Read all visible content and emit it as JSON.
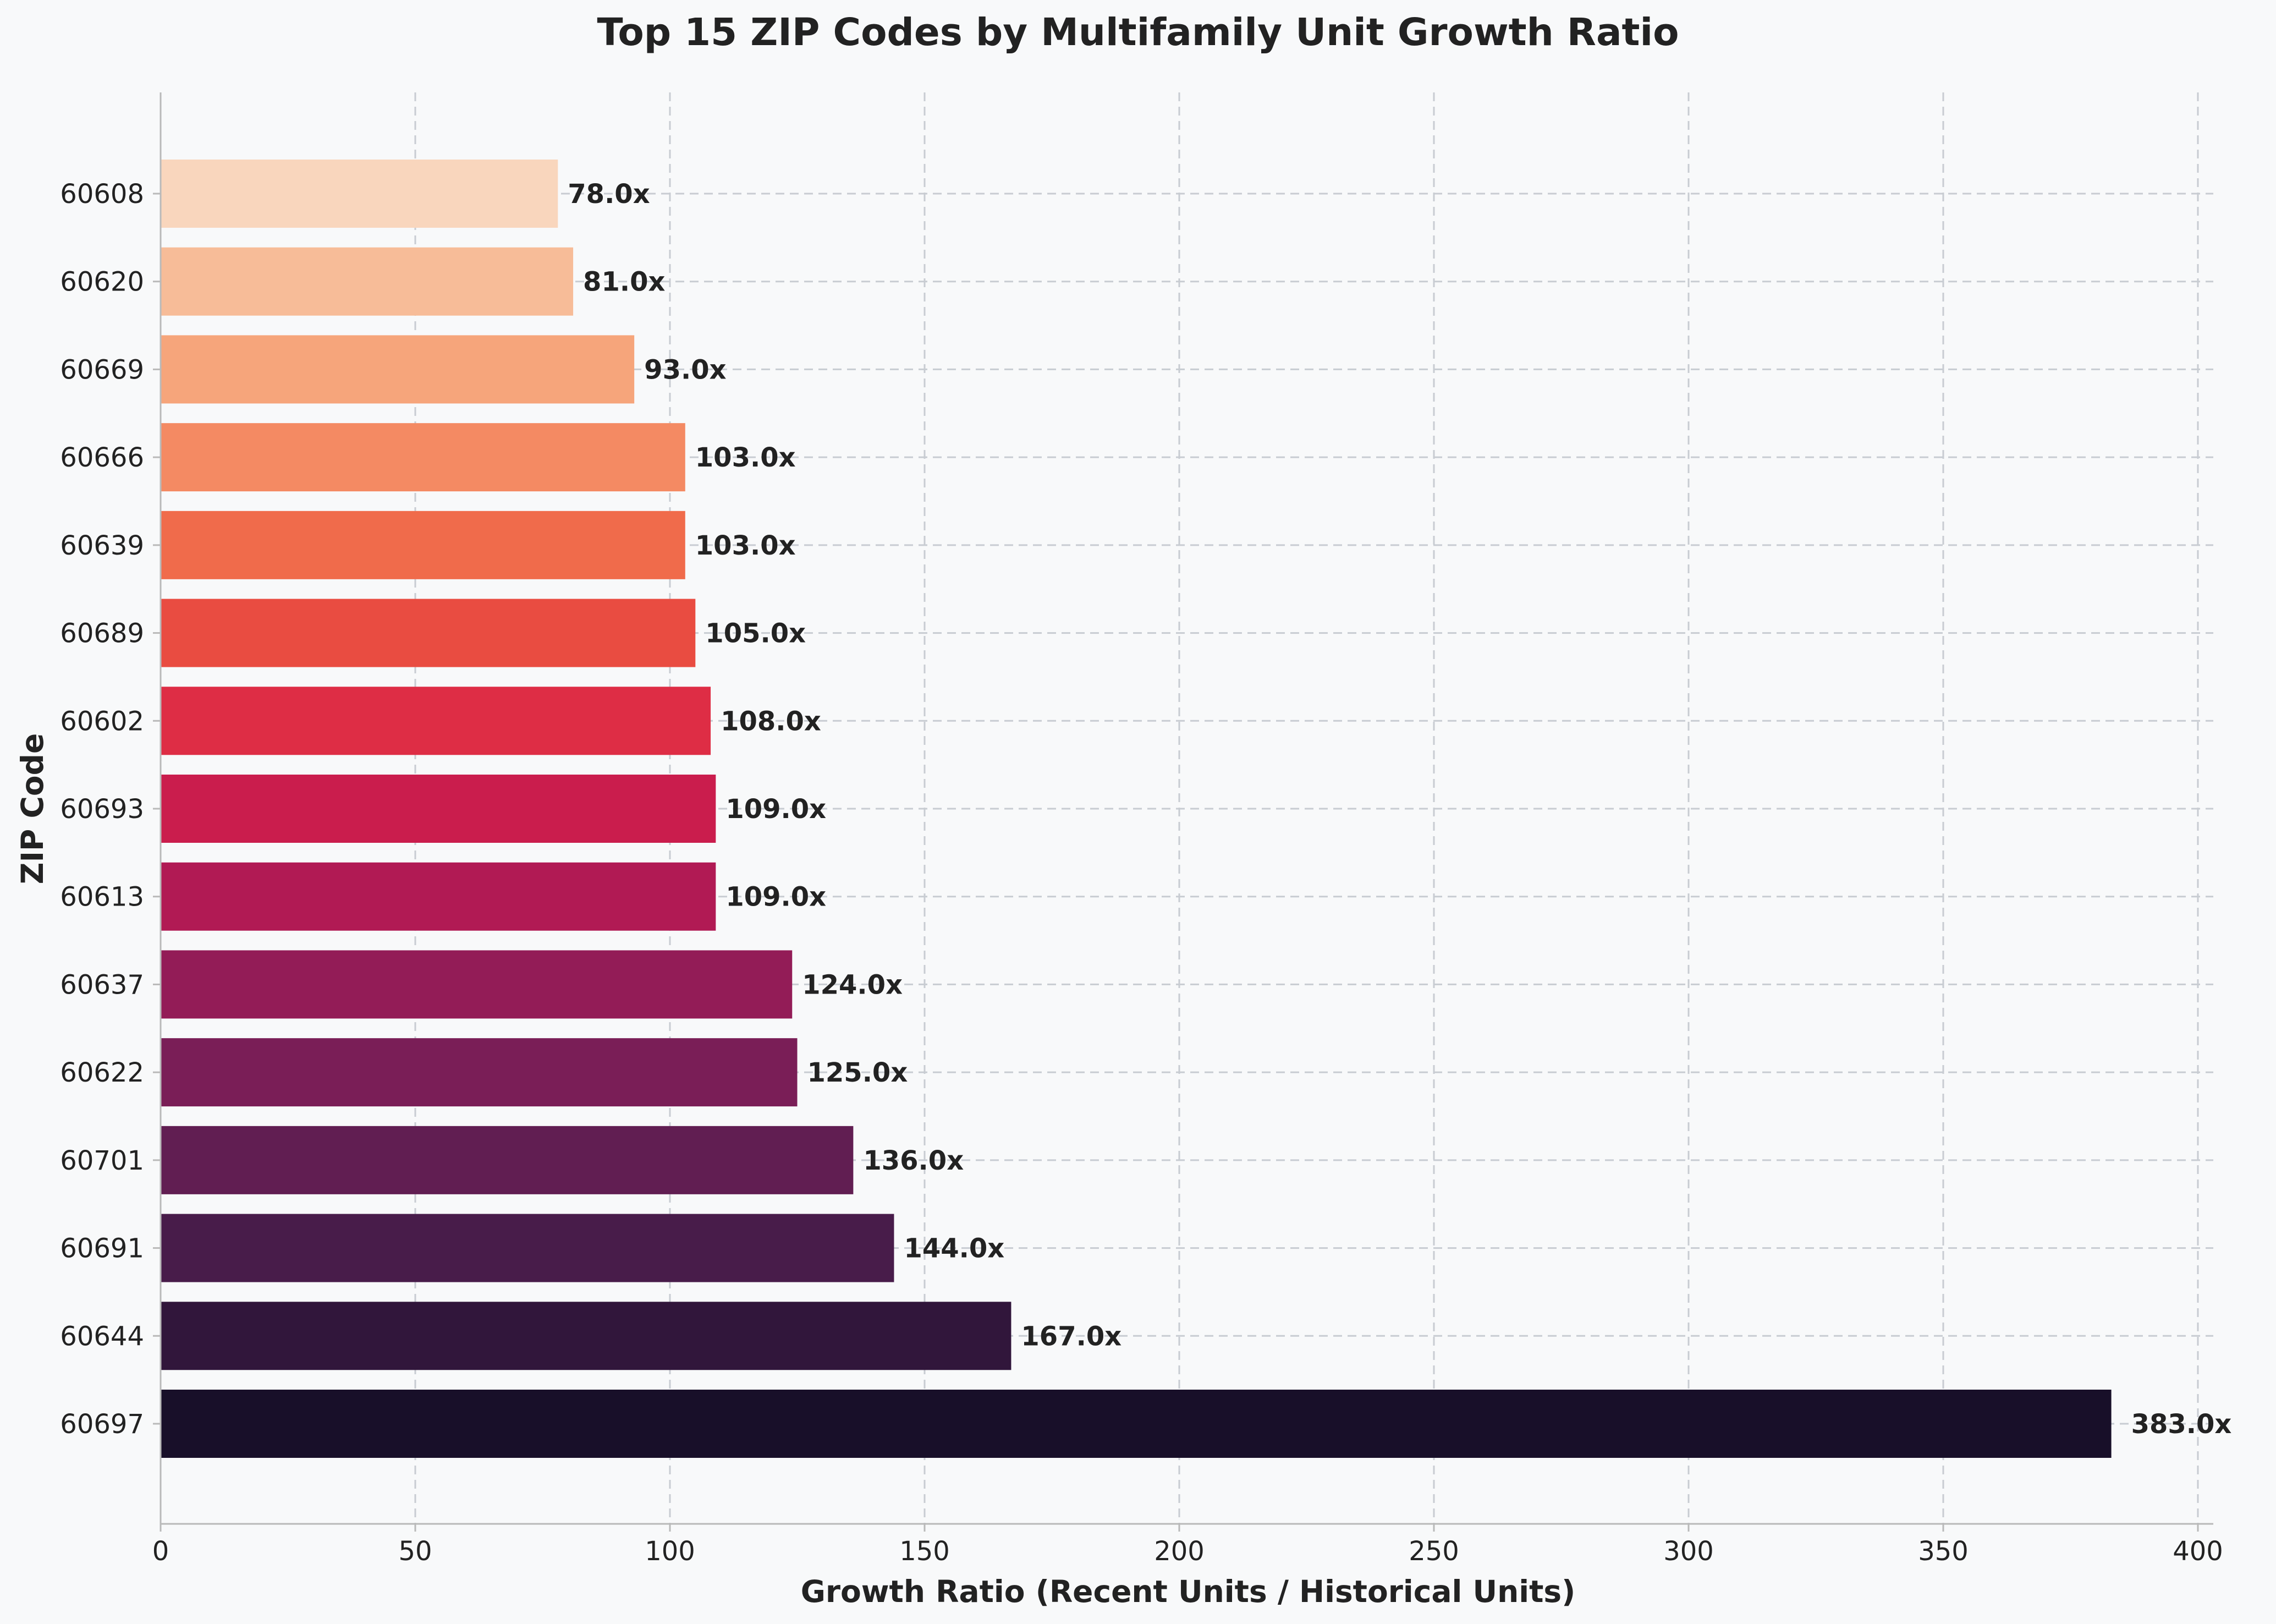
{
  "chart_data": {
    "type": "bar",
    "orientation": "horizontal",
    "title": "Top 15 ZIP Codes by Multifamily Unit Growth Ratio",
    "xlabel": "Growth Ratio (Recent Units / Historical Units)",
    "ylabel": "ZIP Code",
    "xlim": [
      0,
      400
    ],
    "xticks": [
      0,
      50,
      100,
      150,
      200,
      250,
      300,
      350,
      400
    ],
    "grid": true,
    "categories": [
      "60608",
      "60620",
      "60669",
      "60666",
      "60639",
      "60689",
      "60602",
      "60693",
      "60613",
      "60637",
      "60622",
      "60701",
      "60691",
      "60644",
      "60697"
    ],
    "values": [
      78.0,
      81.0,
      93.0,
      103.0,
      103.0,
      105.0,
      108.0,
      109.0,
      109.0,
      124.0,
      125.0,
      136.0,
      144.0,
      167.0,
      383.0
    ],
    "value_labels": [
      "78.0x",
      "81.0x",
      "93.0x",
      "103.0x",
      "103.0x",
      "105.0x",
      "108.0x",
      "109.0x",
      "109.0x",
      "124.0x",
      "125.0x",
      "136.0x",
      "144.0x",
      "167.0x",
      "383.0x"
    ],
    "colors": [
      "#f9d6bd",
      "#f7bc98",
      "#f6a57b",
      "#f48a63",
      "#f06b4b",
      "#e94c41",
      "#de2d45",
      "#ca1d4d",
      "#b11a54",
      "#931c57",
      "#7a1e57",
      "#611e52",
      "#481c4a",
      "#31163b",
      "#180f29"
    ]
  }
}
